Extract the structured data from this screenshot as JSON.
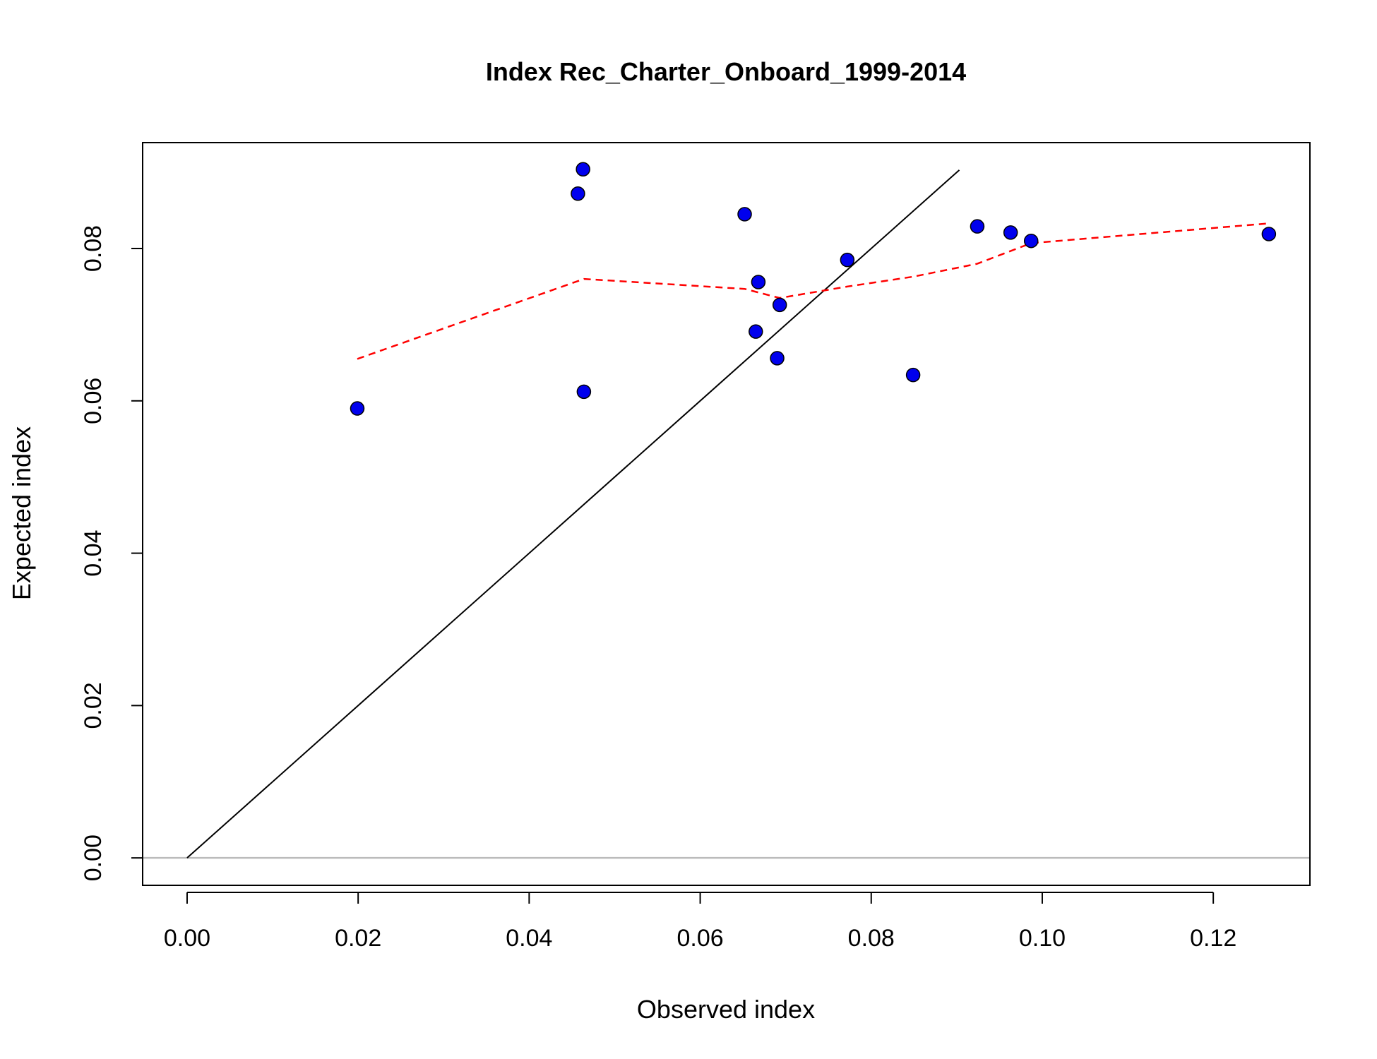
{
  "chart_data": {
    "type": "scatter",
    "title": "Index Rec_Charter_Onboard_1999-2014",
    "xlabel": "Observed index",
    "ylabel": "Expected index",
    "xlim": [
      -0.0052,
      0.1313
    ],
    "ylim": [
      -0.0036,
      0.0939
    ],
    "x_ticks": [
      0.0,
      0.02,
      0.04,
      0.06,
      0.08,
      0.1,
      0.12
    ],
    "x_tick_labels": [
      "0.00",
      "0.02",
      "0.04",
      "0.06",
      "0.08",
      "0.10",
      "0.12"
    ],
    "y_ticks": [
      0.0,
      0.02,
      0.04,
      0.06,
      0.08
    ],
    "y_tick_labels": [
      "0.00",
      "0.02",
      "0.04",
      "0.06",
      "0.08"
    ],
    "points": {
      "name": "Observed vs expected",
      "color": "#0000ee",
      "x": [
        0.0199,
        0.0457,
        0.0463,
        0.0464,
        0.0652,
        0.0665,
        0.0668,
        0.069,
        0.0693,
        0.0772,
        0.0849,
        0.0924,
        0.0963,
        0.0987,
        0.1265
      ],
      "y": [
        0.059,
        0.0872,
        0.0904,
        0.0612,
        0.0845,
        0.0691,
        0.0756,
        0.0656,
        0.0726,
        0.0785,
        0.0634,
        0.0829,
        0.0821,
        0.081,
        0.0819
      ]
    },
    "one_to_one_line": {
      "color": "#000000",
      "x": [
        0.0,
        0.0903
      ],
      "y": [
        0.0,
        0.0903
      ]
    },
    "smoother": {
      "color": "#ff0000",
      "style": "dashed",
      "x": [
        0.0199,
        0.0464,
        0.0652,
        0.0693,
        0.0772,
        0.0849,
        0.0924,
        0.0987,
        0.1265
      ],
      "y": [
        0.0655,
        0.076,
        0.0747,
        0.0735,
        0.075,
        0.0763,
        0.078,
        0.0807,
        0.0833
      ]
    },
    "zero_line": {
      "color": "#bbbbbb",
      "y": 0.0
    }
  }
}
